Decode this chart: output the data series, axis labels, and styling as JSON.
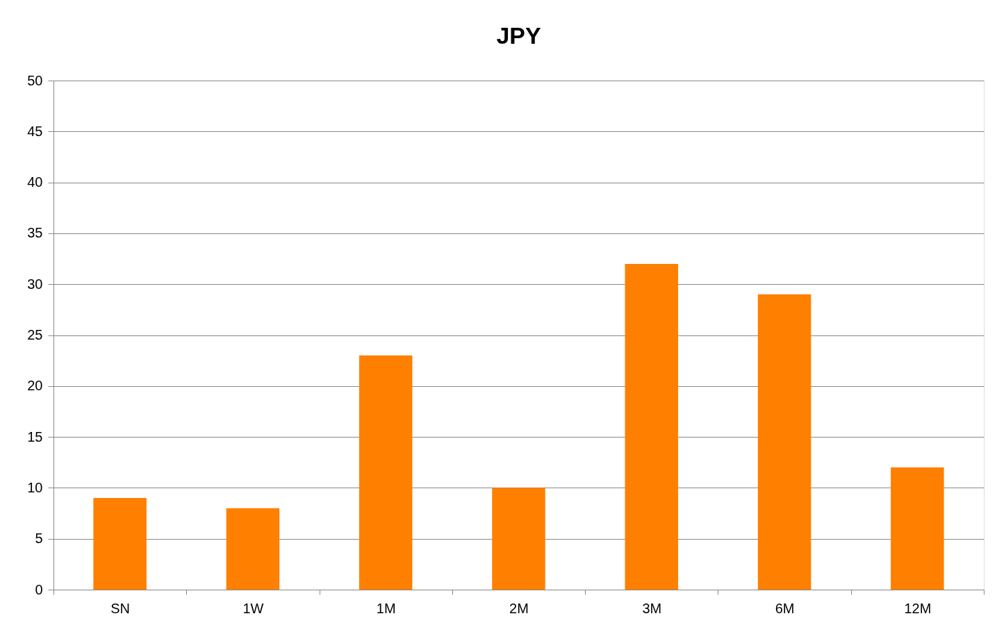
{
  "chart_data": {
    "type": "bar",
    "title": "JPY",
    "categories": [
      "SN",
      "1W",
      "1M",
      "2M",
      "3M",
      "6M",
      "12M"
    ],
    "values": [
      9,
      8,
      23,
      10,
      32,
      29,
      12
    ],
    "color": "#ff8000",
    "ylim": [
      0,
      50
    ],
    "yticks": [
      0,
      5,
      10,
      15,
      20,
      25,
      30,
      35,
      40,
      45,
      50
    ],
    "grid": "y"
  }
}
